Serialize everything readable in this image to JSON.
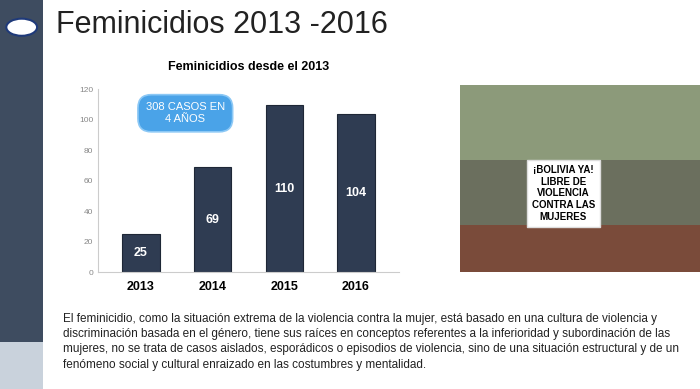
{
  "chart_data": {
    "type": "bar",
    "title": "Feminicidios desde el 2013",
    "categories": [
      "2013",
      "2014",
      "2015",
      "2016"
    ],
    "values": [
      25,
      69,
      110,
      104
    ],
    "color": "#2f3c52",
    "ylim": [
      0,
      120
    ],
    "yticks": [
      0,
      20,
      40,
      60,
      80,
      100,
      120
    ],
    "data_labels": true,
    "annotations": [
      "308 CASOS EN\n4 AÑOS"
    ]
  },
  "slide": {
    "title": "Feminicidios 2013 -2016",
    "photo_sign": "¡BOLIVIA YA!\nLIBRE DE\nVIOLENCIA\nCONTRA LAS\nMUJERES",
    "body": "El feminicidio, como la situación extrema de la violencia contra la mujer, está basado en una cultura de violencia y discriminación basada en el género, tiene sus raíces en conceptos referentes a la inferioridad y subordinación de las mujeres, no se trata de casos aislados, esporádicos o episodios de violencia, sino de una situación estructural y de un fenómeno social y cultural enraizado en las costumbres y mentalidad."
  }
}
